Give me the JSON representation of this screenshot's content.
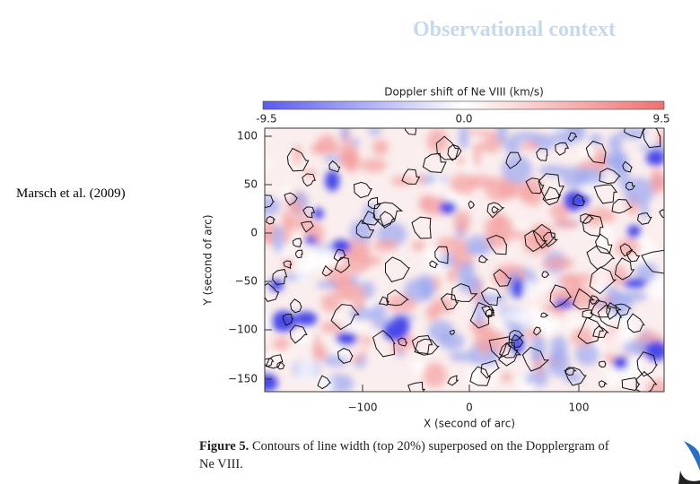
{
  "header": {
    "title": "Observational context"
  },
  "citation": "Marsch et al.  (2009)",
  "figure": {
    "colorbar": {
      "title": "Doppler shift of Ne VIII (km/s)",
      "ticks": [
        "-9.5",
        "0.0",
        "9.5"
      ]
    },
    "yaxis": {
      "label": "Y (second of arc)",
      "ticks": [
        "100",
        "50",
        "0",
        "−50",
        "−100",
        "−150"
      ]
    },
    "xaxis": {
      "label": "X (second of arc)",
      "ticks": [
        "−100",
        "0",
        "100"
      ]
    },
    "caption": {
      "label": "Figure 5.",
      "lines": [
        "Contours of line width (top 20%) superposed on the Dopplergram of",
        "Ne VIII."
      ]
    }
  }
}
